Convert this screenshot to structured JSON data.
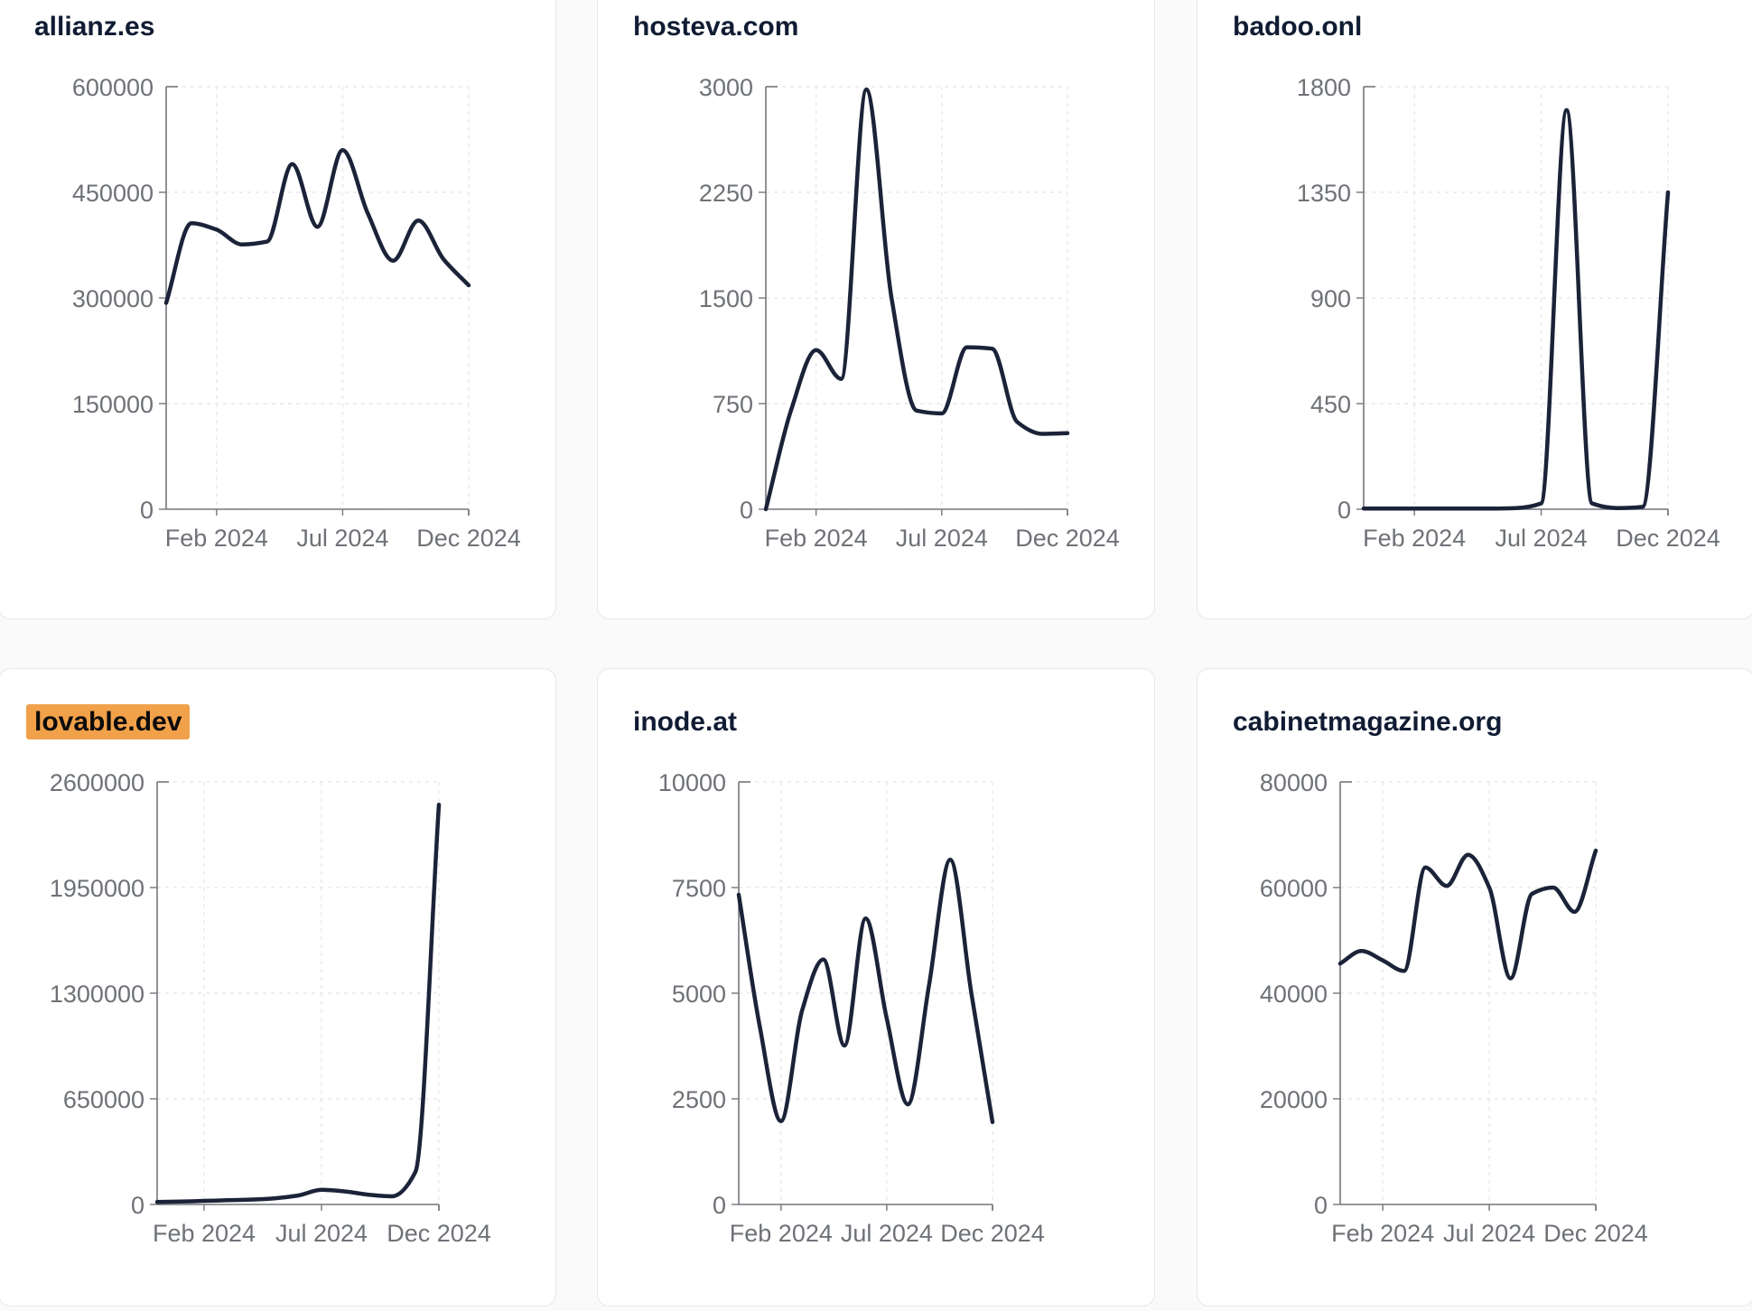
{
  "page": {
    "background_color": "#fafafa",
    "card_background": "#ffffff",
    "card_border_color": "#e6e7e9",
    "highlight_color": "#f1a14a",
    "line_color": "#1b2338",
    "title_color": "#101c33",
    "tick_label_color": "#6e7277",
    "axis_color": "#74777c",
    "grid_color": "#e8e9eb"
  },
  "chart_data": [
    {
      "type": "line",
      "title": "allianz.es",
      "highlighted": false,
      "x": [
        "Dec 2023",
        "Jan 2024",
        "Feb 2024",
        "Mar 2024",
        "Apr 2024",
        "May 2024",
        "Jun 2024",
        "Jul 2024",
        "Aug 2024",
        "Sep 2024",
        "Oct 2024",
        "Nov 2024",
        "Dec 2024"
      ],
      "values": [
        293000,
        406000,
        397000,
        376000,
        380000,
        490000,
        401000,
        510000,
        420000,
        353000,
        410000,
        355000,
        318000
      ],
      "ylim": [
        0,
        600000
      ],
      "y_tick_labels": [
        "0",
        "150000",
        "300000",
        "450000",
        "600000"
      ],
      "x_tick_labels": [
        "Feb 2024",
        "Jul 2024",
        "Dec 2024"
      ],
      "x_tick_month_index": [
        2,
        7,
        12
      ],
      "grid": true,
      "legend": "none"
    },
    {
      "type": "line",
      "title": "hosteva.com",
      "highlighted": false,
      "x": [
        "Dec 2023",
        "Jan 2024",
        "Feb 2024",
        "Mar 2024",
        "Apr 2024",
        "May 2024",
        "Jun 2024",
        "Jul 2024",
        "Aug 2024",
        "Sep 2024",
        "Oct 2024",
        "Nov 2024",
        "Dec 2024"
      ],
      "values": [
        0,
        700,
        1130,
        925,
        2980,
        1500,
        700,
        680,
        1150,
        1140,
        620,
        535,
        540
      ],
      "ylim": [
        0,
        3000
      ],
      "y_tick_labels": [
        "0",
        "750",
        "1500",
        "2250",
        "3000"
      ],
      "x_tick_labels": [
        "Feb 2024",
        "Jul 2024",
        "Dec 2024"
      ],
      "x_tick_month_index": [
        2,
        7,
        12
      ],
      "grid": true,
      "legend": "none"
    },
    {
      "type": "line",
      "title": "badoo.onl",
      "highlighted": false,
      "x": [
        "Dec 2023",
        "Jan 2024",
        "Feb 2024",
        "Mar 2024",
        "Apr 2024",
        "May 2024",
        "Jun 2024",
        "Jul 2024",
        "Aug 2024",
        "Sep 2024",
        "Oct 2024",
        "Nov 2024",
        "Dec 2024"
      ],
      "values": [
        3,
        3,
        3,
        3,
        3,
        3,
        5,
        25,
        1700,
        25,
        5,
        10,
        1350
      ],
      "ylim": [
        0,
        1800
      ],
      "y_tick_labels": [
        "0",
        "450",
        "900",
        "1350",
        "1800"
      ],
      "x_tick_labels": [
        "Feb 2024",
        "Jul 2024",
        "Dec 2024"
      ],
      "x_tick_month_index": [
        2,
        7,
        12
      ],
      "grid": true,
      "legend": "none"
    },
    {
      "type": "line",
      "title": "lovable.dev",
      "highlighted": true,
      "x": [
        "Dec 2023",
        "Jan 2024",
        "Feb 2024",
        "Mar 2024",
        "Apr 2024",
        "May 2024",
        "Jun 2024",
        "Jul 2024",
        "Aug 2024",
        "Sep 2024",
        "Oct 2024",
        "Nov 2024",
        "Dec 2024"
      ],
      "values": [
        15000,
        18000,
        22000,
        26000,
        30000,
        38000,
        55000,
        90000,
        80000,
        60000,
        50000,
        200000,
        2460000
      ],
      "ylim": [
        0,
        2600000
      ],
      "y_tick_labels": [
        "0",
        "650000",
        "1300000",
        "1950000",
        "2600000"
      ],
      "x_tick_labels": [
        "Feb 2024",
        "Jul 2024",
        "Dec 2024"
      ],
      "x_tick_month_index": [
        2,
        7,
        12
      ],
      "grid": true,
      "legend": "none"
    },
    {
      "type": "line",
      "title": "inode.at",
      "highlighted": false,
      "x": [
        "Dec 2023",
        "Jan 2024",
        "Feb 2024",
        "Mar 2024",
        "Apr 2024",
        "May 2024",
        "Jun 2024",
        "Jul 2024",
        "Aug 2024",
        "Sep 2024",
        "Oct 2024",
        "Nov 2024",
        "Dec 2024"
      ],
      "values": [
        7330,
        4200,
        1970,
        4600,
        5800,
        3760,
        6770,
        4400,
        2370,
        5200,
        8160,
        5000,
        1950
      ],
      "ylim": [
        0,
        10000
      ],
      "y_tick_labels": [
        "0",
        "2500",
        "5000",
        "7500",
        "10000"
      ],
      "x_tick_labels": [
        "Feb 2024",
        "Jul 2024",
        "Dec 2024"
      ],
      "x_tick_month_index": [
        2,
        7,
        12
      ],
      "grid": true,
      "legend": "none"
    },
    {
      "type": "line",
      "title": "cabinetmagazine.org",
      "highlighted": false,
      "x": [
        "Dec 2023",
        "Jan 2024",
        "Feb 2024",
        "Mar 2024",
        "Apr 2024",
        "May 2024",
        "Jun 2024",
        "Jul 2024",
        "Aug 2024",
        "Sep 2024",
        "Oct 2024",
        "Nov 2024",
        "Dec 2024"
      ],
      "values": [
        45600,
        48000,
        46200,
        44200,
        63800,
        60300,
        66200,
        60000,
        42800,
        58800,
        60000,
        55400,
        67000
      ],
      "ylim": [
        0,
        80000
      ],
      "y_tick_labels": [
        "0",
        "20000",
        "40000",
        "60000",
        "80000"
      ],
      "x_tick_labels": [
        "Feb 2024",
        "Jul 2024",
        "Dec 2024"
      ],
      "x_tick_month_index": [
        2,
        7,
        12
      ],
      "grid": true,
      "legend": "none"
    }
  ]
}
